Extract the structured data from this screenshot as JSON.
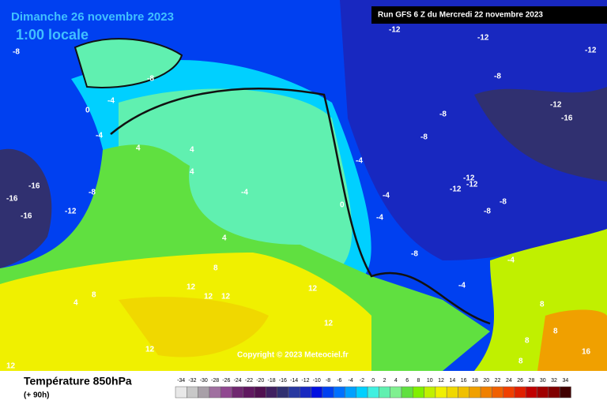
{
  "header": {
    "date": "Dimanche 26 novembre 2023",
    "time": "1:00 locale",
    "run": "Run GFS 6 Z du Mercredi 22 novembre 2023"
  },
  "copyright": "Copyright © 2023 Meteociel.fr",
  "footer": {
    "title": "Température 850hPa",
    "subtitle": "(+ 90h)"
  },
  "legend": {
    "ticks": [
      -34,
      -32,
      -30,
      -28,
      -26,
      -24,
      -22,
      -20,
      -18,
      -16,
      -14,
      -12,
      -10,
      -8,
      -6,
      -4,
      -2,
      0,
      2,
      4,
      6,
      8,
      10,
      12,
      14,
      16,
      18,
      20,
      22,
      24,
      26,
      28,
      30,
      32,
      34
    ],
    "colors": [
      "#e8e8e8",
      "#c8c8c8",
      "#a8a0a8",
      "#a070a0",
      "#904890",
      "#702870",
      "#601860",
      "#501050",
      "#402060",
      "#303070",
      "#2838a0",
      "#1828c0",
      "#0010e0",
      "#0040f0",
      "#0070ff",
      "#00a0ff",
      "#00d0ff",
      "#40f0e0",
      "#60f0b0",
      "#80f090",
      "#60e040",
      "#80f000",
      "#c0f000",
      "#f0f000",
      "#f0d800",
      "#f0c000",
      "#f0a000",
      "#f08000",
      "#f06000",
      "#f04000",
      "#e02000",
      "#c00000",
      "#a00000",
      "#800000",
      "#400000"
    ]
  },
  "map_labels": [
    "-8",
    "-12",
    "-12",
    "-8",
    "-12",
    "-8",
    "-8",
    "-12",
    "-16",
    "-12",
    "-12",
    "-8",
    "-8",
    "-4",
    "-4",
    "-4",
    "-4",
    "-8",
    "-16",
    "-16",
    "-16",
    "-12",
    "-8",
    "0",
    "0",
    "4",
    "4",
    "4",
    "-4",
    "4",
    "8",
    "8",
    "4",
    "12",
    "12",
    "12",
    "12",
    "12",
    "12",
    "-4",
    "-4",
    "8",
    "8",
    "8",
    "16",
    "12",
    "8",
    "-8",
    "-4",
    "-12"
  ]
}
